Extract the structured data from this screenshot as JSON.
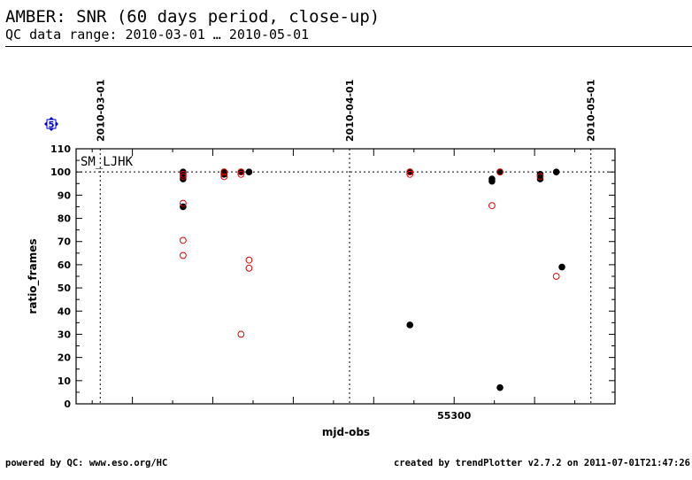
{
  "header": {
    "title": "AMBER: SNR (60 days period, close-up)",
    "subtitle": "QC data range: 2010-03-01 … 2010-05-01"
  },
  "footer": {
    "left": "powered by QC: www.eso.org/HC",
    "right": "created by trendPlotter v2.7.2 on 2011-07-01T21:47:26"
  },
  "badge": {
    "label": "5",
    "color": "#0000cc"
  },
  "chart_data": {
    "type": "scatter",
    "panel_label": "SM_LJHK",
    "xlabel": "mjd-obs",
    "ylabel": "ratio_frames",
    "xlim": [
      55253,
      55320
    ],
    "ylim": [
      0,
      110
    ],
    "xticks": [
      55300
    ],
    "yticks": [
      0,
      10,
      20,
      30,
      40,
      50,
      60,
      70,
      80,
      90,
      100,
      110
    ],
    "reference_line": 100,
    "date_markers": [
      {
        "x": 55256,
        "label": "2010-03-01"
      },
      {
        "x": 55287,
        "label": "2010-04-01"
      },
      {
        "x": 55317,
        "label": "2010-05-01"
      }
    ],
    "colors": {
      "filled": "#000000",
      "open": "#dd0000"
    },
    "series": [
      {
        "style": "filled",
        "points": [
          [
            55266.3,
            100
          ],
          [
            55266.3,
            99
          ],
          [
            55266.3,
            97
          ],
          [
            55266.3,
            85
          ],
          [
            55271.4,
            100
          ],
          [
            55271.4,
            99
          ],
          [
            55273.5,
            100
          ],
          [
            55274.5,
            100
          ],
          [
            55294.5,
            100
          ],
          [
            55294.5,
            34
          ],
          [
            55304.7,
            97
          ],
          [
            55304.7,
            96
          ],
          [
            55305.7,
            100
          ],
          [
            55305.7,
            7
          ],
          [
            55310.7,
            99
          ],
          [
            55310.7,
            97
          ],
          [
            55312.7,
            100
          ],
          [
            55313.4,
            59
          ]
        ]
      },
      {
        "style": "open",
        "points": [
          [
            55266.3,
            99
          ],
          [
            55266.3,
            98
          ],
          [
            55266.3,
            86.5
          ],
          [
            55266.3,
            70.5
          ],
          [
            55266.3,
            64
          ],
          [
            55271.4,
            100
          ],
          [
            55271.4,
            98
          ],
          [
            55273.5,
            100
          ],
          [
            55273.5,
            99
          ],
          [
            55273.5,
            30
          ],
          [
            55274.5,
            62
          ],
          [
            55274.5,
            58.5
          ],
          [
            55294.5,
            100
          ],
          [
            55294.5,
            99
          ],
          [
            55304.7,
            85.5
          ],
          [
            55305.7,
            100
          ],
          [
            55310.7,
            98
          ],
          [
            55312.7,
            55
          ]
        ]
      }
    ]
  }
}
